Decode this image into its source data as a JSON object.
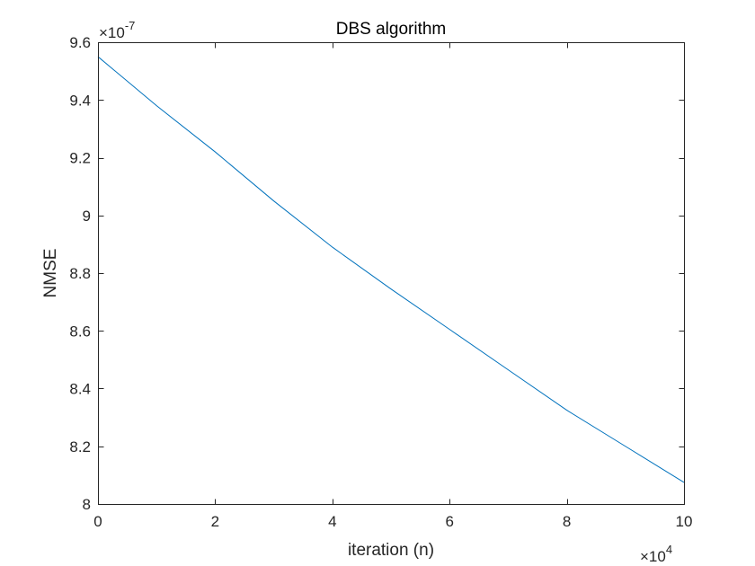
{
  "chart_data": {
    "type": "line",
    "title": "DBS algorithm",
    "xlabel": "iteration (n)",
    "ylabel": "NMSE",
    "x_multiplier": {
      "base": "×10",
      "exp": "4"
    },
    "y_multiplier": {
      "base": "×10",
      "exp": "-7"
    },
    "xlim": [
      0,
      10
    ],
    "ylim": [
      8,
      9.6
    ],
    "x_ticks": [
      0,
      2,
      4,
      6,
      8,
      10
    ],
    "x_tick_labels": [
      "0",
      "2",
      "4",
      "6",
      "8",
      "10"
    ],
    "y_ticks": [
      8,
      8.2,
      8.4,
      8.6,
      8.8,
      9,
      9.2,
      9.4,
      9.6
    ],
    "y_tick_labels": [
      "8",
      "8.2",
      "8.4",
      "8.6",
      "8.8",
      "9",
      "9.2",
      "9.4",
      "9.6"
    ],
    "grid": false,
    "box": true,
    "series": [
      {
        "color": "#0072bd",
        "x": [
          0,
          1,
          2,
          3,
          4,
          5,
          6,
          7,
          8,
          9,
          10
        ],
        "y": [
          9.55,
          9.38,
          9.22,
          9.05,
          8.89,
          8.745,
          8.605,
          8.465,
          8.325,
          8.2,
          8.075
        ]
      }
    ]
  }
}
